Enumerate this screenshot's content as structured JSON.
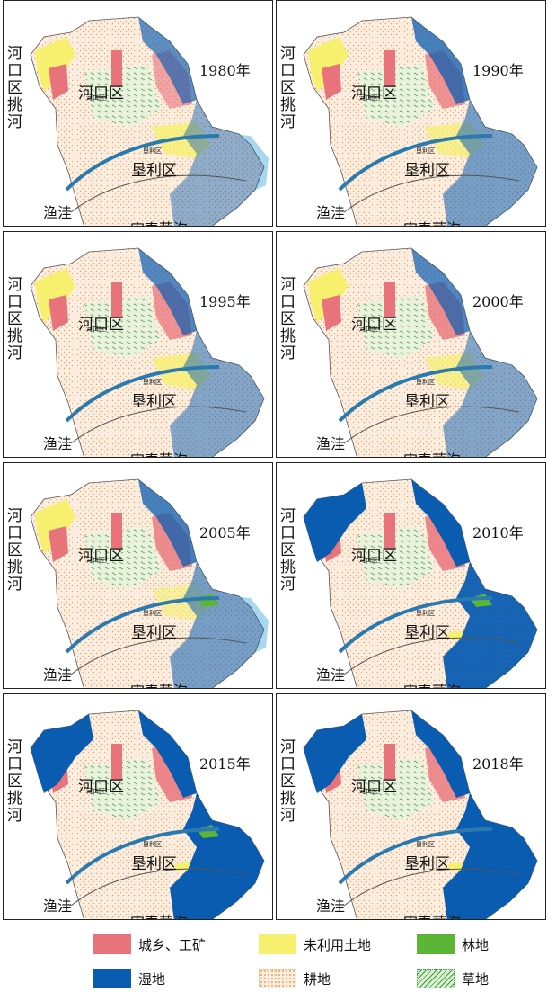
{
  "colors": {
    "urban": "#e9737b",
    "unused": "#f7f06e",
    "forest": "#5cb535",
    "wetland": "#0a5cb0",
    "farmland_bg": "#fbeee0",
    "farmland_dot": "#e8a05a",
    "grassland": "#dff0d0",
    "grassland_dot": "#3a9a4a",
    "sea": "#a8d7f0",
    "river": "#2a7ab0"
  },
  "labels": {
    "left": "河口区挑河",
    "hekou": "河口区",
    "kenli": "垦利区",
    "hekou_small": "河口区",
    "kenli_small": "垦利区",
    "yuwa": "渔洼",
    "song": "宋春荣沟"
  },
  "panels": [
    {
      "year": "1980年",
      "wetland_level": 0.25,
      "unused_level": 0.8,
      "urban_level": 0.2,
      "forest": false,
      "sea": true
    },
    {
      "year": "1990年",
      "wetland_level": 0.35,
      "unused_level": 0.7,
      "urban_level": 0.5,
      "forest": false,
      "sea": false
    },
    {
      "year": "1995年",
      "wetland_level": 0.3,
      "unused_level": 0.8,
      "urban_level": 0.5,
      "forest": false,
      "sea": false
    },
    {
      "year": "2000年",
      "wetland_level": 0.3,
      "unused_level": 0.7,
      "urban_level": 0.6,
      "forest": false,
      "sea": false
    },
    {
      "year": "2005年",
      "wetland_level": 0.35,
      "unused_level": 0.6,
      "urban_level": 0.6,
      "forest": true,
      "sea": true
    },
    {
      "year": "2010年",
      "wetland_level": 0.75,
      "unused_level": 0.1,
      "urban_level": 0.7,
      "forest": true,
      "sea": false
    },
    {
      "year": "2015年",
      "wetland_level": 0.8,
      "unused_level": 0.1,
      "urban_level": 0.7,
      "forest": true,
      "sea": false
    },
    {
      "year": "2018年",
      "wetland_level": 0.9,
      "unused_level": 0.1,
      "urban_level": 0.6,
      "forest": false,
      "sea": false
    }
  ],
  "legend": [
    {
      "label": "城乡、工矿",
      "type": "urban"
    },
    {
      "label": "未利用土地",
      "type": "unused"
    },
    {
      "label": "林地",
      "type": "forest"
    },
    {
      "label": "湿地",
      "type": "wetland"
    },
    {
      "label": "耕地",
      "type": "farmland"
    },
    {
      "label": "草地",
      "type": "grassland"
    }
  ]
}
